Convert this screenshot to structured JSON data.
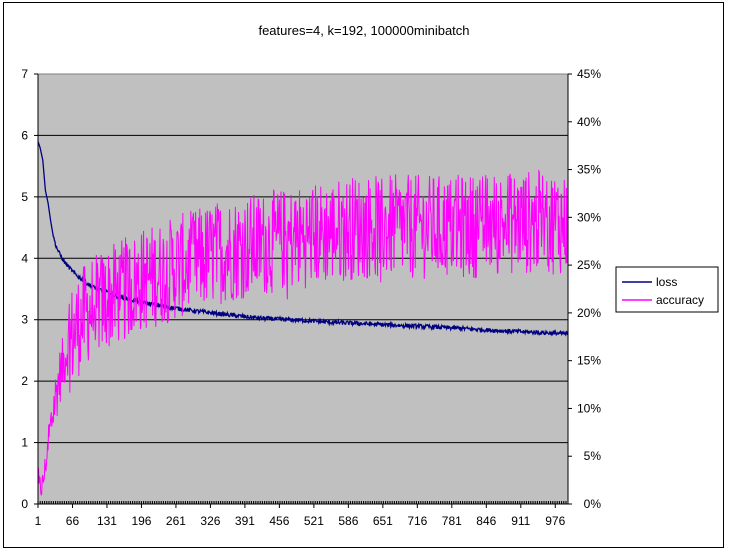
{
  "chart_data": {
    "type": "line",
    "title": "features=4, k=192, 100000minibatch",
    "x_tick_labels": [
      "1",
      "66",
      "131",
      "196",
      "261",
      "326",
      "391",
      "456",
      "521",
      "586",
      "651",
      "716",
      "781",
      "846",
      "911",
      "976"
    ],
    "x_range": [
      1,
      1000
    ],
    "y_left_range": [
      0,
      7
    ],
    "y_left_ticks": [
      "0",
      "1",
      "2",
      "3",
      "4",
      "5",
      "6",
      "7"
    ],
    "y_right_range": [
      0,
      45
    ],
    "y_right_ticks": [
      "0%",
      "5%",
      "10%",
      "15%",
      "20%",
      "25%",
      "30%",
      "35%",
      "40%",
      "45%"
    ],
    "gridlines": true,
    "plot_background": "#c0c0c0",
    "legend_position": "right",
    "series": [
      {
        "name": "loss",
        "axis": "left",
        "color": "#000080",
        "points": [
          [
            1,
            5.9
          ],
          [
            5,
            5.8
          ],
          [
            10,
            5.6
          ],
          [
            15,
            5.1
          ],
          [
            20,
            4.9
          ],
          [
            25,
            4.6
          ],
          [
            30,
            4.35
          ],
          [
            35,
            4.2
          ],
          [
            40,
            4.1
          ],
          [
            50,
            3.95
          ],
          [
            60,
            3.85
          ],
          [
            70,
            3.75
          ],
          [
            85,
            3.65
          ],
          [
            100,
            3.55
          ],
          [
            120,
            3.48
          ],
          [
            150,
            3.38
          ],
          [
            200,
            3.28
          ],
          [
            250,
            3.2
          ],
          [
            300,
            3.14
          ],
          [
            350,
            3.09
          ],
          [
            400,
            3.04
          ],
          [
            450,
            3.01
          ],
          [
            500,
            2.99
          ],
          [
            550,
            2.96
          ],
          [
            600,
            2.94
          ],
          [
            650,
            2.92
          ],
          [
            700,
            2.9
          ],
          [
            750,
            2.88
          ],
          [
            800,
            2.86
          ],
          [
            850,
            2.83
          ],
          [
            900,
            2.81
          ],
          [
            950,
            2.79
          ],
          [
            1000,
            2.77
          ]
        ]
      },
      {
        "name": "accuracy",
        "axis": "right",
        "color": "#ff00ff",
        "trend_points": [
          [
            1,
            1.5
          ],
          [
            10,
            2
          ],
          [
            20,
            6
          ],
          [
            30,
            10
          ],
          [
            40,
            13
          ],
          [
            50,
            15
          ],
          [
            60,
            17
          ],
          [
            80,
            19
          ],
          [
            100,
            20.5
          ],
          [
            150,
            22
          ],
          [
            200,
            23.5
          ],
          [
            250,
            24.5
          ],
          [
            300,
            25.5
          ],
          [
            350,
            26.5
          ],
          [
            400,
            27
          ],
          [
            450,
            27.5
          ],
          [
            500,
            28
          ],
          [
            550,
            28.5
          ],
          [
            600,
            29
          ],
          [
            650,
            29
          ],
          [
            700,
            29
          ],
          [
            800,
            29
          ],
          [
            900,
            29.5
          ],
          [
            1000,
            29.5
          ]
        ],
        "range_percent": [
          0,
          40
        ],
        "samples": 1000
      }
    ]
  }
}
